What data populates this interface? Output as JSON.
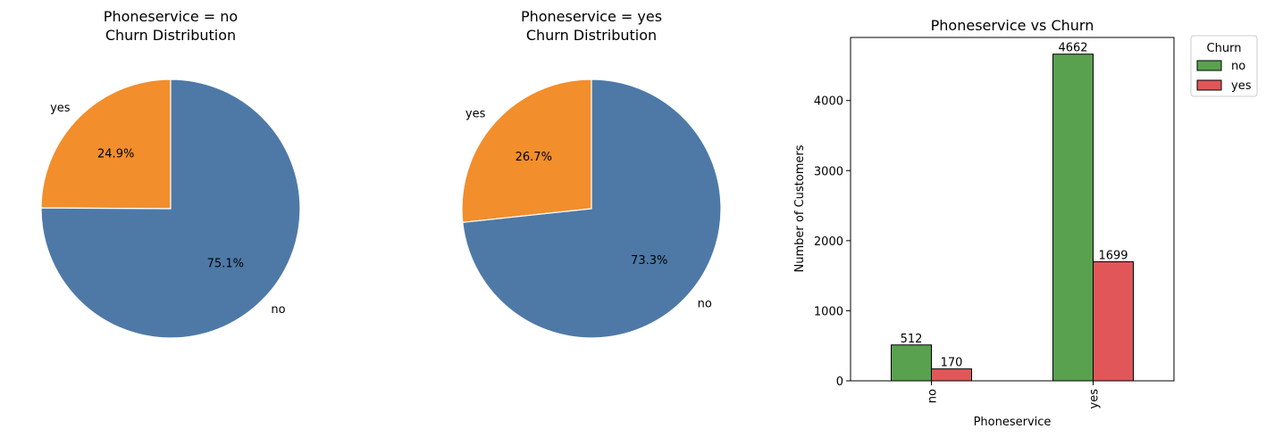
{
  "chart_data": [
    {
      "type": "pie",
      "title_line1": "Phoneservice = no",
      "title_line2": "Churn Distribution",
      "labels": [
        "yes",
        "no"
      ],
      "values": [
        24.9,
        75.1
      ],
      "pct_labels": [
        "24.9%",
        "75.1%"
      ],
      "colors": [
        "#f28e2b",
        "#4e79a7"
      ]
    },
    {
      "type": "pie",
      "title_line1": "Phoneservice = yes",
      "title_line2": "Churn Distribution",
      "labels": [
        "yes",
        "no"
      ],
      "values": [
        26.7,
        73.3
      ],
      "pct_labels": [
        "26.7%",
        "73.3%"
      ],
      "colors": [
        "#f28e2b",
        "#4e79a7"
      ]
    },
    {
      "type": "bar",
      "title": "Phoneservice vs Churn",
      "xlabel": "Phoneservice",
      "ylabel": "Number of Customers",
      "categories": [
        "no",
        "yes"
      ],
      "series": [
        {
          "name": "no",
          "values": [
            512,
            4662
          ],
          "color": "#59a14f"
        },
        {
          "name": "yes",
          "values": [
            170,
            1699
          ],
          "color": "#e15759"
        }
      ],
      "ylim": [
        0,
        4900
      ],
      "yticks": [
        0,
        1000,
        2000,
        3000,
        4000
      ],
      "legend_title": "Churn",
      "legend_position": "outside-top-right",
      "grid": false
    }
  ]
}
